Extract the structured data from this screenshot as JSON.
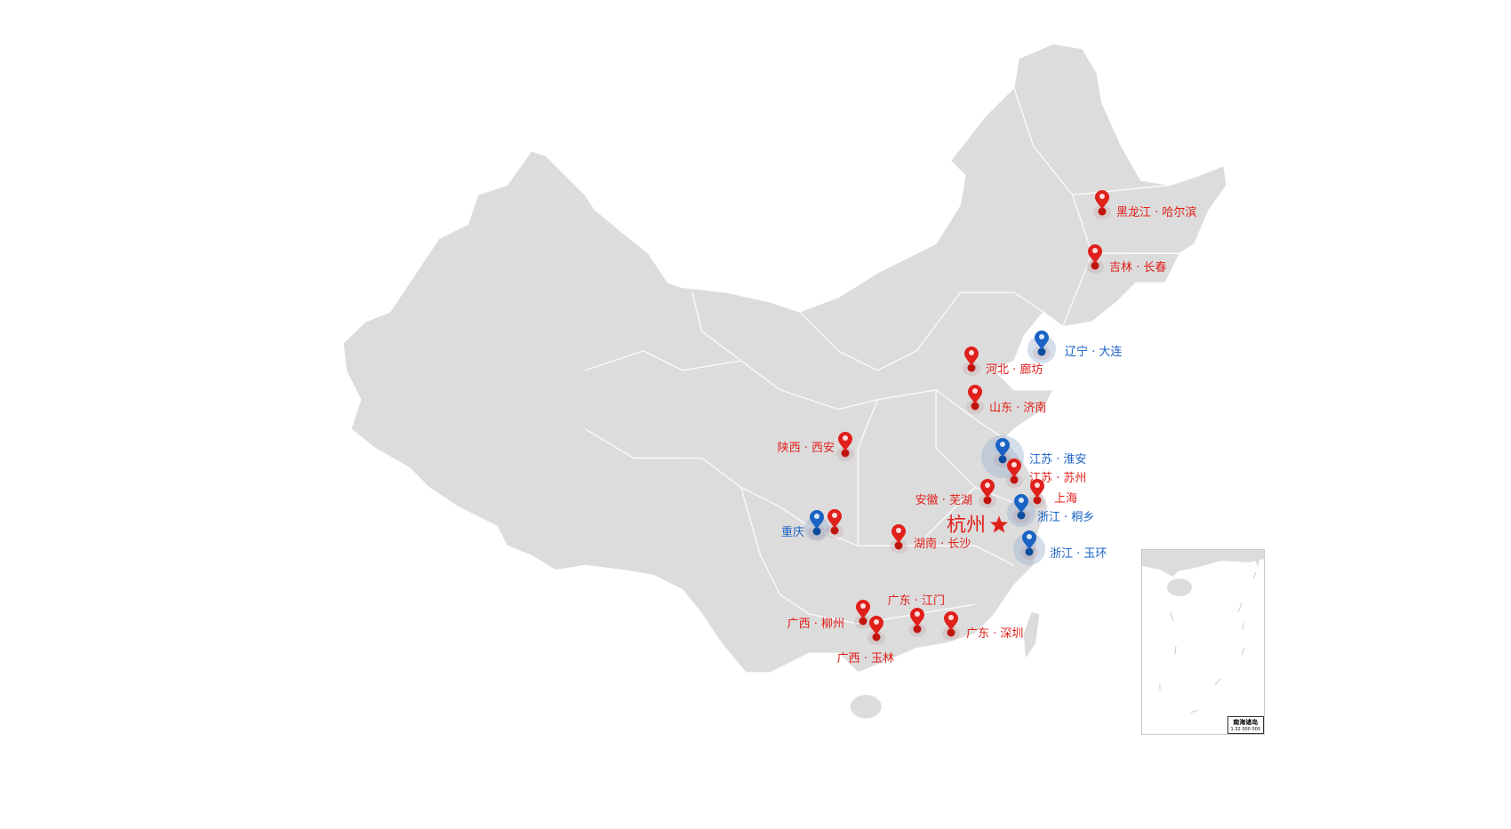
{
  "colors": {
    "land": "#dcdcdc",
    "border": "#ffffff",
    "red": "#e0201b",
    "blue": "#1a62c4"
  },
  "capital": {
    "label": "杭州",
    "icon": "star-icon",
    "color": "#e0201b"
  },
  "markers": [
    {
      "label": "黑龙江 · 哈尔滨",
      "color": "red"
    },
    {
      "label": "吉林 · 长春",
      "color": "red"
    },
    {
      "label": "辽宁 · 大连",
      "color": "blue"
    },
    {
      "label": "河北 · 廊坊",
      "color": "red"
    },
    {
      "label": "山东 · 济南",
      "color": "red"
    },
    {
      "label": "陕西 · 西安",
      "color": "red"
    },
    {
      "label": "江苏 · 淮安",
      "color": "blue"
    },
    {
      "label": "江苏 · 苏州",
      "color": "red"
    },
    {
      "label": "上海",
      "color": "red"
    },
    {
      "label": "安徽 · 芜湖",
      "color": "red"
    },
    {
      "label": "浙江 · 桐乡",
      "color": "blue"
    },
    {
      "label": "浙江 · 玉环",
      "color": "blue"
    },
    {
      "label": "重庆",
      "color": "blue"
    },
    {
      "label": "",
      "color": "red"
    },
    {
      "label": "湖南 · 长沙",
      "color": "red"
    },
    {
      "label": "广东 · 江门",
      "color": "red"
    },
    {
      "label": "广西 · 柳州",
      "color": "red"
    },
    {
      "label": "广西 · 玉林",
      "color": "red"
    },
    {
      "label": "广东 · 深圳",
      "color": "red"
    }
  ],
  "inset": {
    "title": "南海诸岛",
    "scale": "1:32 000 000"
  }
}
